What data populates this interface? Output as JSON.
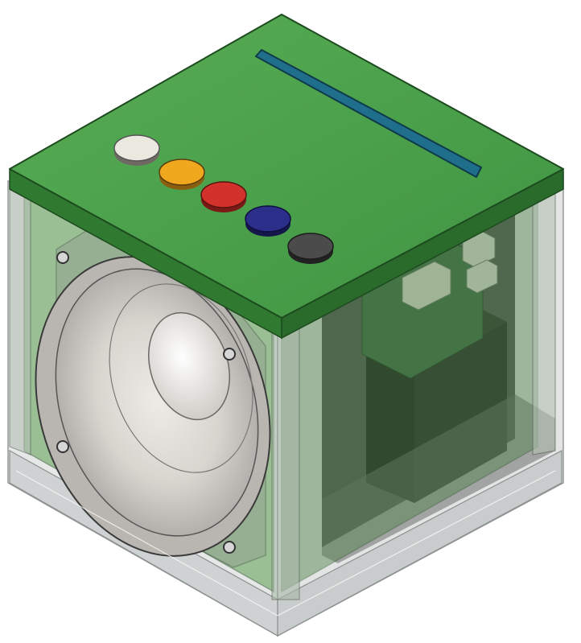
{
  "scene": {
    "subject": "speaker-cube",
    "colors": {
      "top_panel": "#4aa04a",
      "top_panel_edge": "#2f6e2f",
      "side_green_left": "#5a9a4e",
      "side_green_right": "#4b7d45",
      "clear_shell": "#d9dcdc",
      "clear_shell_edge": "#8c8f8f",
      "slot_fill": "#1f6f8c",
      "speaker_cone": "#d6d3cd",
      "speaker_rim": "#9a9895",
      "interior_dark": "#2a2d2a",
      "pcb_green": "#3e6b46",
      "battery_black": "#1e1f1e"
    },
    "buttons": [
      {
        "name": "white-button",
        "color": "#e9e6de"
      },
      {
        "name": "yellow-button",
        "color": "#f0a81f"
      },
      {
        "name": "red-button",
        "color": "#d2322b"
      },
      {
        "name": "blue-button",
        "color": "#2c2f8a"
      },
      {
        "name": "gray-button",
        "color": "#4a4b4a"
      }
    ]
  }
}
